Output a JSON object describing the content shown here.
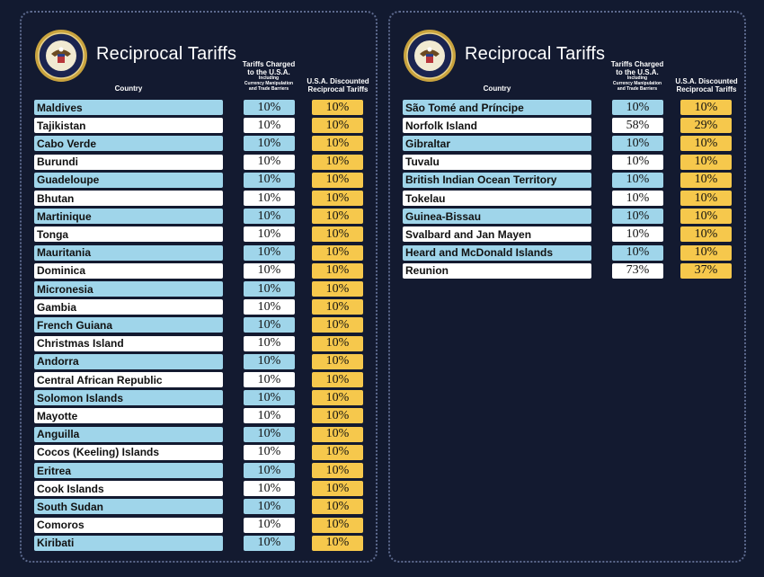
{
  "panels": [
    {
      "title": "Reciprocal Tariffs",
      "headers": {
        "country": "Country",
        "charged": [
          "Tariffs Charged",
          "to the U.S.A."
        ],
        "charged_note": [
          "Including",
          "Currency Manipulation",
          "and Trade Barriers"
        ],
        "discounted": [
          "U.S.A. Discounted",
          "Reciprocal Tariffs"
        ]
      },
      "rows": [
        [
          "Maldives",
          "10%",
          "10%"
        ],
        [
          "Tajikistan",
          "10%",
          "10%"
        ],
        [
          "Cabo Verde",
          "10%",
          "10%"
        ],
        [
          "Burundi",
          "10%",
          "10%"
        ],
        [
          "Guadeloupe",
          "10%",
          "10%"
        ],
        [
          "Bhutan",
          "10%",
          "10%"
        ],
        [
          "Martinique",
          "10%",
          "10%"
        ],
        [
          "Tonga",
          "10%",
          "10%"
        ],
        [
          "Mauritania",
          "10%",
          "10%"
        ],
        [
          "Dominica",
          "10%",
          "10%"
        ],
        [
          "Micronesia",
          "10%",
          "10%"
        ],
        [
          "Gambia",
          "10%",
          "10%"
        ],
        [
          "French Guiana",
          "10%",
          "10%"
        ],
        [
          "Christmas Island",
          "10%",
          "10%"
        ],
        [
          "Andorra",
          "10%",
          "10%"
        ],
        [
          "Central African Republic",
          "10%",
          "10%"
        ],
        [
          "Solomon Islands",
          "10%",
          "10%"
        ],
        [
          "Mayotte",
          "10%",
          "10%"
        ],
        [
          "Anguilla",
          "10%",
          "10%"
        ],
        [
          "Cocos (Keeling) Islands",
          "10%",
          "10%"
        ],
        [
          "Eritrea",
          "10%",
          "10%"
        ],
        [
          "Cook Islands",
          "10%",
          "10%"
        ],
        [
          "South Sudan",
          "10%",
          "10%"
        ],
        [
          "Comoros",
          "10%",
          "10%"
        ],
        [
          "Kiribati",
          "10%",
          "10%"
        ]
      ]
    },
    {
      "title": "Reciprocal Tariffs",
      "headers": {
        "country": "Country",
        "charged": [
          "Tariffs Charged",
          "to the U.S.A."
        ],
        "charged_note": [
          "Including",
          "Currency Manipulation",
          "and Trade Barriers"
        ],
        "discounted": [
          "U.S.A. Discounted",
          "Reciprocal Tariffs"
        ]
      },
      "rows": [
        [
          "São Tomé and Príncipe",
          "10%",
          "10%"
        ],
        [
          "Norfolk Island",
          "58%",
          "29%"
        ],
        [
          "Gibraltar",
          "10%",
          "10%"
        ],
        [
          "Tuvalu",
          "10%",
          "10%"
        ],
        [
          "British Indian Ocean Territory",
          "10%",
          "10%"
        ],
        [
          "Tokelau",
          "10%",
          "10%"
        ],
        [
          "Guinea-Bissau",
          "10%",
          "10%"
        ],
        [
          "Svalbard and Jan Mayen",
          "10%",
          "10%"
        ],
        [
          "Heard and McDonald Islands",
          "10%",
          "10%"
        ],
        [
          "Reunion",
          "73%",
          "37%"
        ]
      ]
    }
  ]
}
